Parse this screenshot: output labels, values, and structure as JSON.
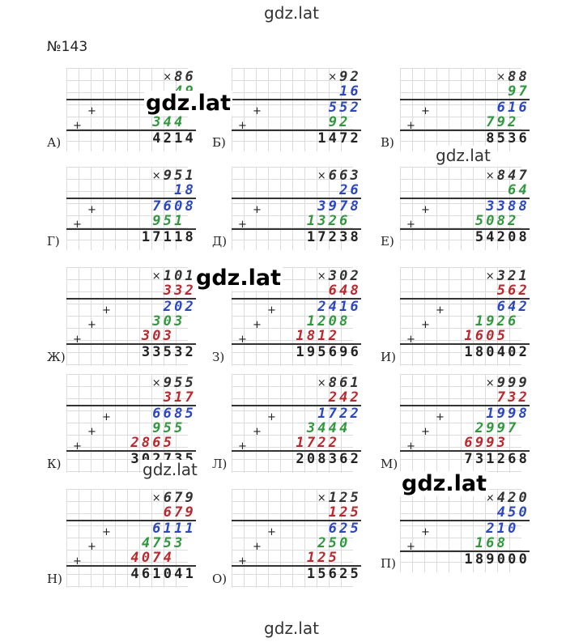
{
  "watermarks": {
    "top": "gdz.lat",
    "bottom": "gdz.lat",
    "overlay": [
      "gdz.lat",
      "gdz.lat",
      "gdz.lat",
      "gdz.lat",
      "gdz.lat"
    ]
  },
  "title": "№143",
  "problems": [
    {
      "label": "А)",
      "rows": [
        {
          "t": "86",
          "c": "dark"
        },
        {
          "t": "49",
          "c": "green"
        },
        {
          "t": "774",
          "c": "blue"
        },
        {
          "t": "344 ",
          "c": "green"
        },
        {
          "t": "4214",
          "c": "final"
        }
      ]
    },
    {
      "label": "Б)",
      "rows": [
        {
          "t": "92",
          "c": "dark"
        },
        {
          "t": "16",
          "c": "blue"
        },
        {
          "t": "552",
          "c": "blue"
        },
        {
          "t": "92 ",
          "c": "green"
        },
        {
          "t": "1472",
          "c": "final"
        }
      ]
    },
    {
      "label": "В)",
      "rows": [
        {
          "t": "88",
          "c": "dark"
        },
        {
          "t": "97",
          "c": "green"
        },
        {
          "t": "616",
          "c": "blue"
        },
        {
          "t": "792 ",
          "c": "green"
        },
        {
          "t": "8536",
          "c": "final"
        }
      ]
    },
    {
      "label": "Г)",
      "rows": [
        {
          "t": "951",
          "c": "dark"
        },
        {
          "t": "18",
          "c": "blue"
        },
        {
          "t": "7608",
          "c": "blue"
        },
        {
          "t": "951 ",
          "c": "green"
        },
        {
          "t": "17118",
          "c": "final"
        }
      ]
    },
    {
      "label": "Д)",
      "rows": [
        {
          "t": "663",
          "c": "dark"
        },
        {
          "t": "26",
          "c": "blue"
        },
        {
          "t": "3978",
          "c": "blue"
        },
        {
          "t": "1326 ",
          "c": "green"
        },
        {
          "t": "17238",
          "c": "final"
        }
      ]
    },
    {
      "label": "Е)",
      "rows": [
        {
          "t": "847",
          "c": "dark"
        },
        {
          "t": "64",
          "c": "green"
        },
        {
          "t": "3388",
          "c": "blue"
        },
        {
          "t": "5082 ",
          "c": "green"
        },
        {
          "t": "54208",
          "c": "final"
        }
      ]
    },
    {
      "label": "Ж)",
      "rows": [
        {
          "t": "101",
          "c": "dark"
        },
        {
          "t": "332",
          "c": "red"
        },
        {
          "t": "202",
          "c": "blue"
        },
        {
          "t": "303 ",
          "c": "green"
        },
        {
          "t": "303  ",
          "c": "red"
        },
        {
          "t": "33532",
          "c": "final"
        }
      ]
    },
    {
      "label": "З)",
      "rows": [
        {
          "t": "302",
          "c": "dark"
        },
        {
          "t": "648",
          "c": "red"
        },
        {
          "t": "2416",
          "c": "blue"
        },
        {
          "t": "1208 ",
          "c": "green"
        },
        {
          "t": "1812  ",
          "c": "red"
        },
        {
          "t": "195696",
          "c": "final"
        }
      ]
    },
    {
      "label": "И)",
      "rows": [
        {
          "t": "321",
          "c": "dark"
        },
        {
          "t": "562",
          "c": "red"
        },
        {
          "t": "642",
          "c": "blue"
        },
        {
          "t": "1926 ",
          "c": "green"
        },
        {
          "t": "1605  ",
          "c": "red"
        },
        {
          "t": "180402",
          "c": "final"
        }
      ]
    },
    {
      "label": "К)",
      "rows": [
        {
          "t": "955",
          "c": "dark"
        },
        {
          "t": "317",
          "c": "red"
        },
        {
          "t": "6685",
          "c": "blue"
        },
        {
          "t": "955 ",
          "c": "green"
        },
        {
          "t": "2865  ",
          "c": "red"
        },
        {
          "t": "302735",
          "c": "final"
        }
      ]
    },
    {
      "label": "Л)",
      "rows": [
        {
          "t": "861",
          "c": "dark"
        },
        {
          "t": "242",
          "c": "red"
        },
        {
          "t": "1722",
          "c": "blue"
        },
        {
          "t": "3444 ",
          "c": "green"
        },
        {
          "t": "1722  ",
          "c": "red"
        },
        {
          "t": "208362",
          "c": "final"
        }
      ]
    },
    {
      "label": "М)",
      "rows": [
        {
          "t": "999",
          "c": "dark"
        },
        {
          "t": "732",
          "c": "red"
        },
        {
          "t": "1998",
          "c": "blue"
        },
        {
          "t": "2997 ",
          "c": "green"
        },
        {
          "t": "6993  ",
          "c": "red"
        },
        {
          "t": "731268",
          "c": "final"
        }
      ]
    },
    {
      "label": "Н)",
      "rows": [
        {
          "t": "679",
          "c": "dark"
        },
        {
          "t": "679",
          "c": "red"
        },
        {
          "t": "6111",
          "c": "blue"
        },
        {
          "t": "4753 ",
          "c": "green"
        },
        {
          "t": "4074  ",
          "c": "red"
        },
        {
          "t": "461041",
          "c": "final"
        }
      ]
    },
    {
      "label": "О)",
      "rows": [
        {
          "t": "125",
          "c": "dark"
        },
        {
          "t": "125",
          "c": "red"
        },
        {
          "t": "625",
          "c": "blue"
        },
        {
          "t": "250 ",
          "c": "green"
        },
        {
          "t": "125  ",
          "c": "red"
        },
        {
          "t": "15625",
          "c": "final"
        }
      ]
    },
    {
      "label": "П)",
      "rows": [
        {
          "t": "420",
          "c": "dark"
        },
        {
          "t": "450",
          "c": "blue"
        },
        {
          "t": "210 ",
          "c": "blue"
        },
        {
          "t": "168  ",
          "c": "green"
        },
        {
          "t": "189000",
          "c": "final"
        }
      ]
    }
  ]
}
